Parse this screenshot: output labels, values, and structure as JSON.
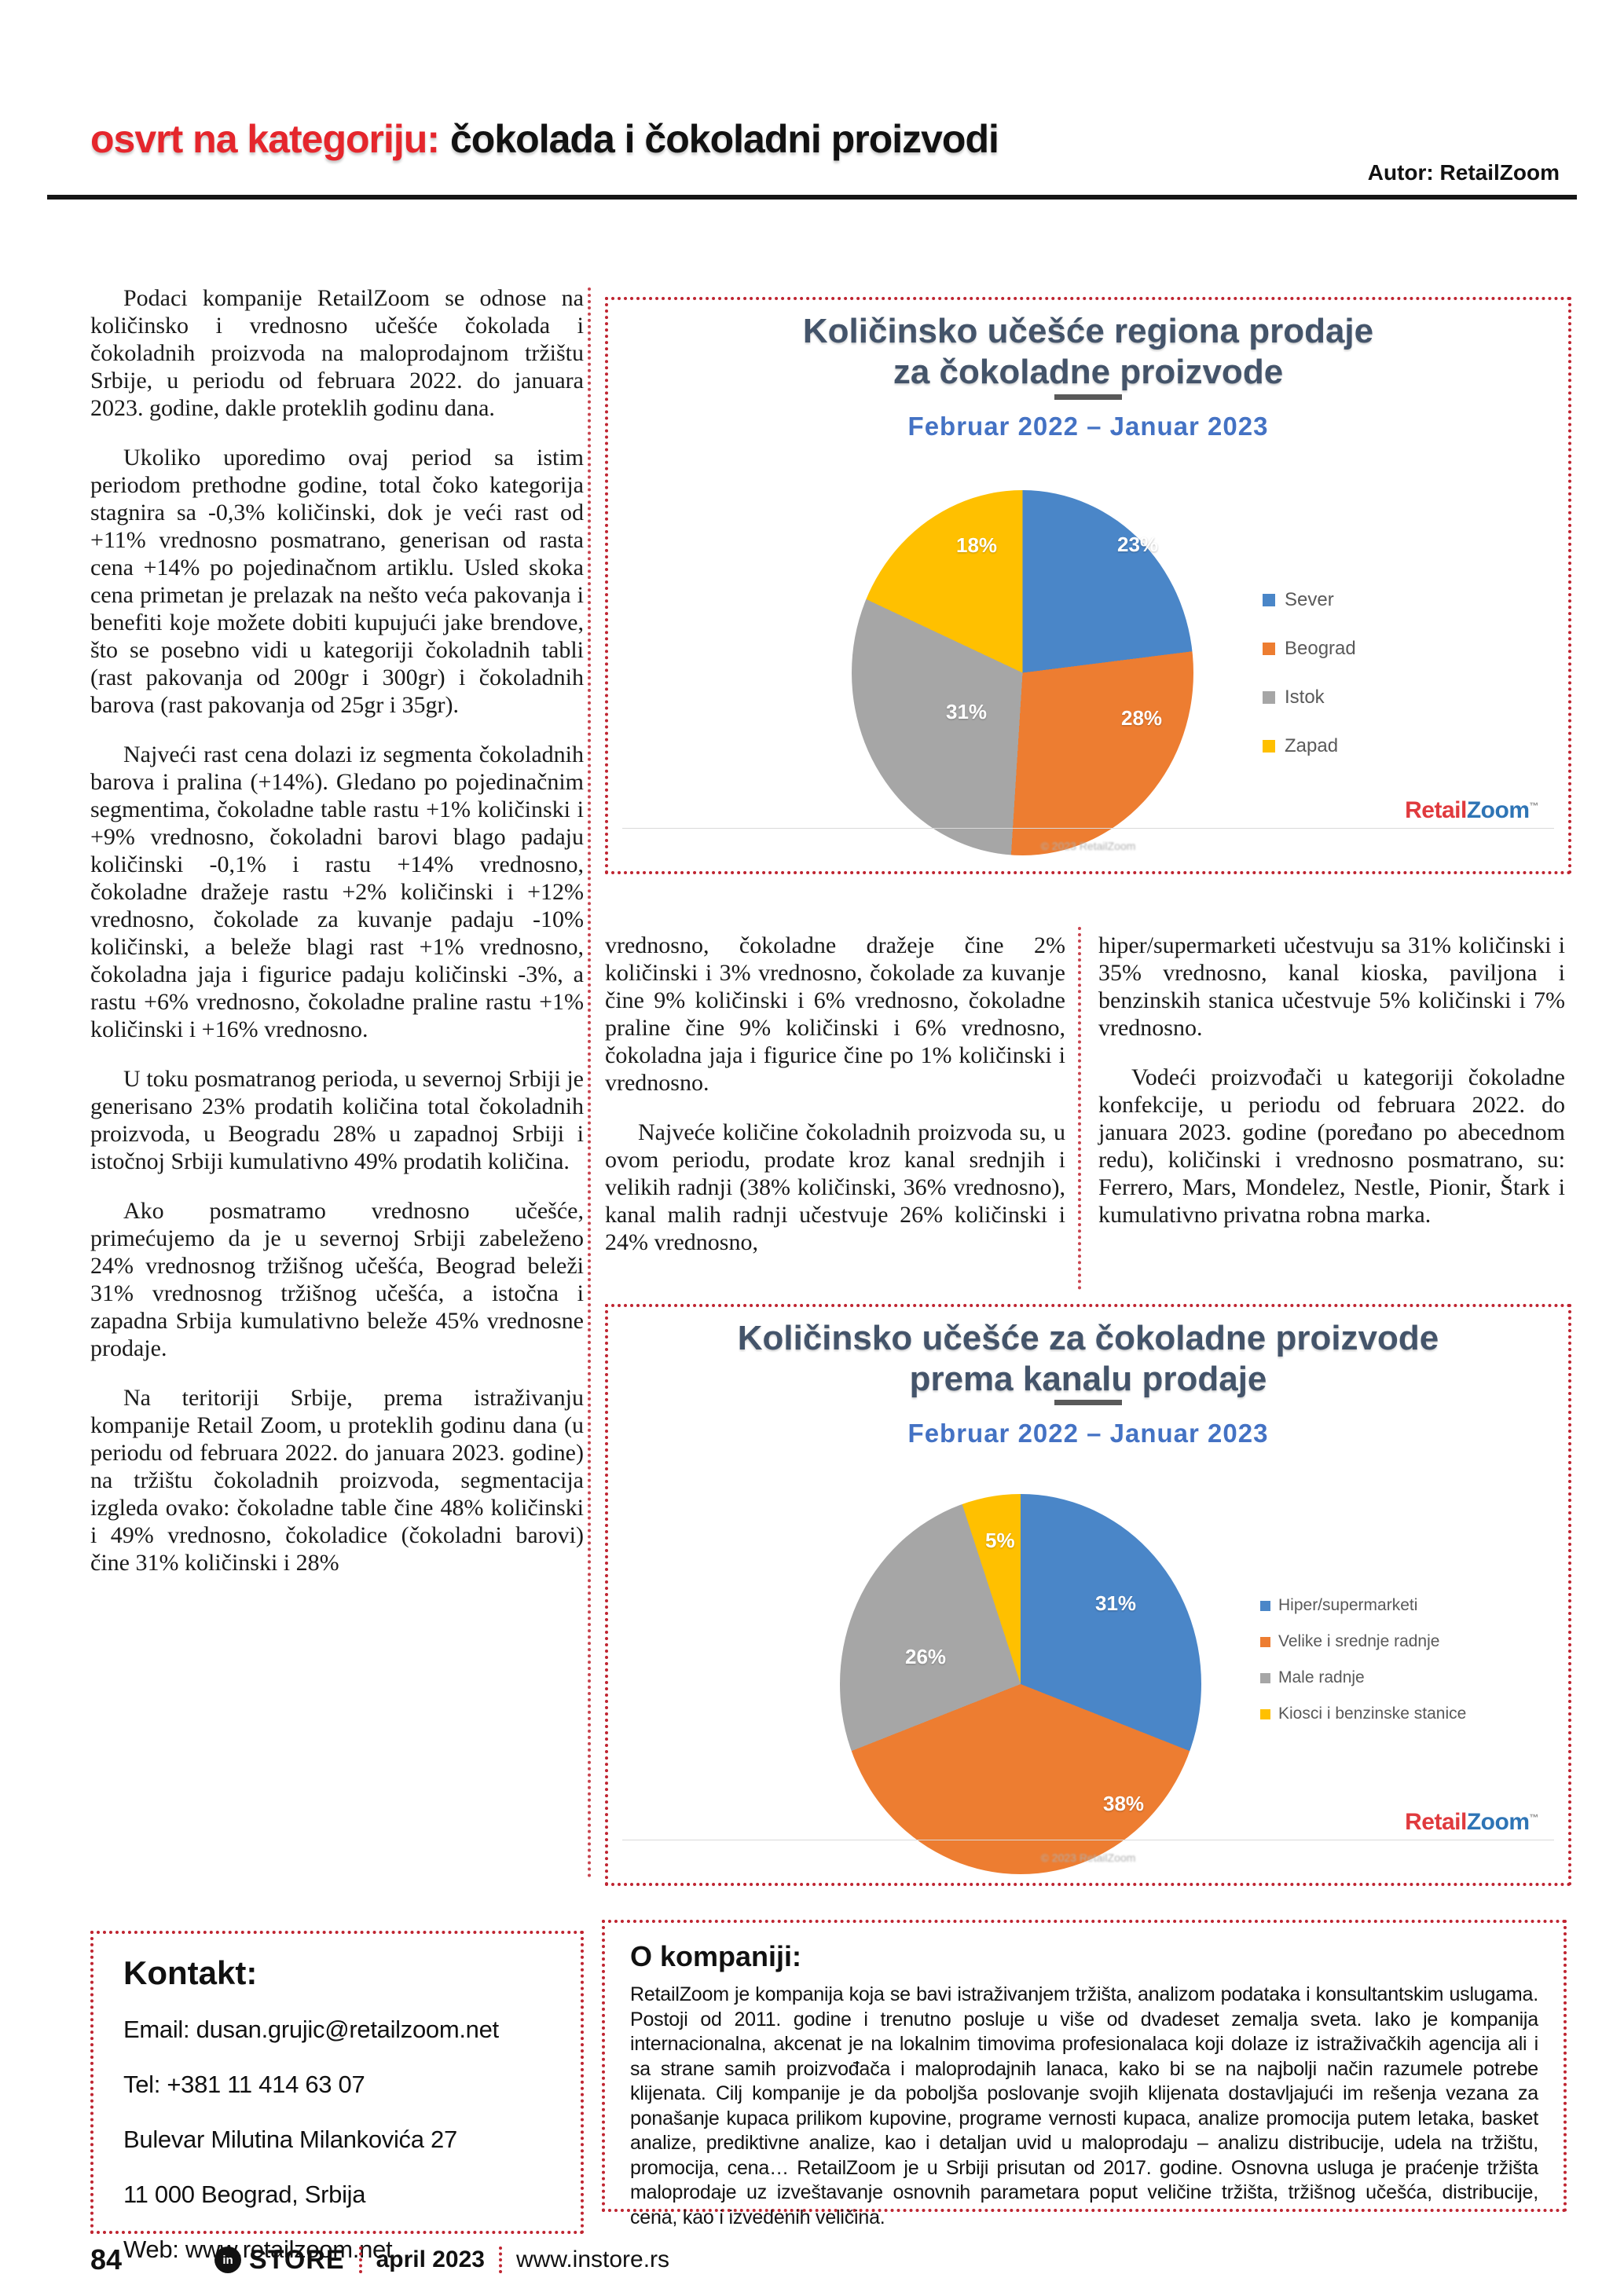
{
  "header": {
    "kicker": "osvrt na kategoriju:",
    "title": "čokolada i čokoladni proizvodi",
    "author": "Autor: RetailZoom"
  },
  "article": {
    "col1": [
      "Podaci kompanije RetailZoom se odnose na količinsko i vrednosno učešće čokolada i čokoladnih proizvoda na maloprodajnom tržištu Srbije, u periodu od februara 2022. do januara 2023. godine, dakle proteklih godinu dana.",
      "Ukoliko uporedimo ovaj period sa istim periodom prethodne godine, total čoko kategorija stagnira sa -0,3% količinski, dok je veći rast od +11% vrednosno posmatrano, generisan od rasta cena +14% po pojedinačnom artiklu. Usled skoka cena primetan je prelazak na nešto veća pakovanja i benefiti koje možete dobiti kupujući jake brendove, što se posebno vidi u kategoriji čokoladnih tabli (rast pakovanja od 200gr i 300gr) i čokoladnih barova (rast pakovanja od 25gr i 35gr).",
      "Najveći rast cena dolazi iz segmenta čokoladnih barova i pralina (+14%). Gledano po pojedinačnim segmentima, čokoladne table rastu +1% količinski i +9% vrednosno, čokoladni barovi blago padaju količinski -0,1% i rastu +14% vrednosno, čokoladne dražeje rastu +2% količinski i +12% vrednosno, čokolade za kuvanje padaju -10% količinski, a beleže blagi rast +1% vrednosno, čokoladna jaja i figurice padaju količinski -3%, a rastu +6% vrednosno, čokoladne praline rastu +1% količinski i +16% vrednosno.",
      "U toku posmatranog perioda, u severnoj Srbiji je generisano 23% prodatih količina total čokoladnih proizvoda, u Beogradu 28% u zapadnoj Srbiji i istočnoj Srbiji kumulativno 49% prodatih količina.",
      "Ako posmatramo vrednosno učešće, primećujemo da je u severnoj Srbiji zabeleženo 24% vrednosnog tržišnog učešća, Beograd beleži 31% vrednosnog tržišnog učešća, a istočna i zapadna Srbija kumulativno beleže 45% vrednosne prodaje.",
      "Na teritoriji Srbije, prema istraživanju kompanije Retail Zoom, u proteklih godinu dana (u periodu od februara 2022. do januara 2023. godine) na tržištu čokoladnih proizvoda, segmentacija izgleda ovako: čokoladne table čine 48% količinski i 49% vrednosno, čokoladice (čokoladni barovi) čine 31% količinski i 28%"
    ],
    "col2": [
      "vrednosno, čokoladne dražeje čine 2% količinski i 3% vrednosno, čokolade za kuvanje čine 9% količinski i 6% vrednosno, čokoladne praline čine 9% količinski i 6% vrednosno, čokoladna jaja i figurice čine po 1% količinski i vrednosno.",
      "Najveće količine čokoladnih proizvoda su, u ovom periodu, prodate kroz kanal srednjih i velikih radnji (38% količinski, 36% vrednosno), kanal malih radnji učestvuje 26% količinski i 24% vrednosno,"
    ],
    "col3": [
      "hiper/supermarketi učestvuju sa 31% količinski i 35% vrednosno, kanal kioska, paviljona i benzinskih stanica učestvuje 5% količinski i 7% vrednosno.",
      "Vodeći proizvođači u kategoriji čokoladne konfekcije, u periodu od februara 2022. do januara 2023. godine (poređano po abecednom redu), količinski i vrednosno posmatrano, su: Ferrero, Mars, Mondelez, Nestle, Pionir, Štark i kumulativno privatna robna marka."
    ]
  },
  "chart_data": [
    {
      "type": "pie",
      "title": "Količinsko učešće regiona prodaje za čokoladne proizvode",
      "title_lines": [
        "Količinsko učešće regiona prodaje",
        "za čokoladne proizvode"
      ],
      "subtitle": "Februar 2022 – Januar 2023",
      "legend_position": "right",
      "slices": [
        {
          "name": "Sever",
          "value": 23,
          "label": "23%",
          "color": "#4a86c8"
        },
        {
          "name": "Beograd",
          "value": 28,
          "label": "28%",
          "color": "#ed7d31"
        },
        {
          "name": "Istok",
          "value": 31,
          "label": "31%",
          "color": "#a6a6a6"
        },
        {
          "name": "Zapad",
          "value": 18,
          "label": "18%",
          "color": "#ffc000"
        }
      ],
      "source_note": "© 2023 RetailZoom"
    },
    {
      "type": "pie",
      "title": "Količinsko učešće za čokoladne proizvode prema kanalu prodaje",
      "title_lines": [
        "Količinsko učešće za čokoladne proizvode",
        "prema kanalu prodaje"
      ],
      "subtitle": "Februar 2022 – Januar 2023",
      "legend_position": "right",
      "slices": [
        {
          "name": "Hiper/supermarketi",
          "value": 31,
          "label": "31%",
          "color": "#4a86c8"
        },
        {
          "name": "Velike i srednje radnje",
          "value": 38,
          "label": "38%",
          "color": "#ed7d31"
        },
        {
          "name": "Male radnje",
          "value": 26,
          "label": "26%",
          "color": "#a6a6a6"
        },
        {
          "name": "Kiosci i benzinske stanice",
          "value": 5,
          "label": "5%",
          "color": "#ffc000"
        }
      ],
      "source_note": "© 2023 RetailZoom"
    }
  ],
  "brand": {
    "retail": "Retail",
    "zoom": "Zoom",
    "tm": "™"
  },
  "kontakt": {
    "heading": "Kontakt:",
    "email": "Email: dusan.grujic@retailzoom.net",
    "tel": "Tel:  +381 11 414 63 07",
    "address": "Bulevar Milutina Milankovića 27",
    "city": "11 000 Beograd, Srbija",
    "web": "Web: www.retailzoom.net"
  },
  "about": {
    "heading": "O kompaniji:",
    "body": "RetailZoom je kompanija koja se bavi istraživanjem tržišta, analizom podataka i konsultantskim uslugama. Postoji od 2011. godine i trenutno posluje u više od dvadeset zemalja sveta. Iako je kompanija internacionalna, akcenat je na lokalnim timovima profesionalaca koji dolaze iz istraživačkih agencija ali i sa strane samih proizvođača i maloprodajnih lanaca, kako bi se na najbolji način razumele potrebe klijenata. Cilj kompanije je da poboljša poslovanje svojih klijenata dostavljajući im rešenja vezana za ponašanje kupaca prilikom kupovine, programe vernosti kupaca, analize promocija putem letaka, basket analize, prediktivne analize, kao i detaljan uvid u maloprodaju – analizu distribucije, udela na tržištu, promocija, cena… RetailZoom je u Srbiji prisutan od 2017. godine. Osnovna usluga je praćenje tržišta maloprodaje uz izveštavanje osnovnih parametara poput veličine tržišta, tržišnog učešća, distribucije, cena, kao i izvedenih veličina."
  },
  "footer": {
    "page_number": "84",
    "brand_in": "in",
    "brand_store": "STORE",
    "issue": "april 2023",
    "website": "www.instore.rs"
  },
  "colors": {
    "accent_red": "#bf2430",
    "headline_red": "#e5262c",
    "chart_title": "#44546a",
    "chart_subtitle": "#4472c4"
  }
}
